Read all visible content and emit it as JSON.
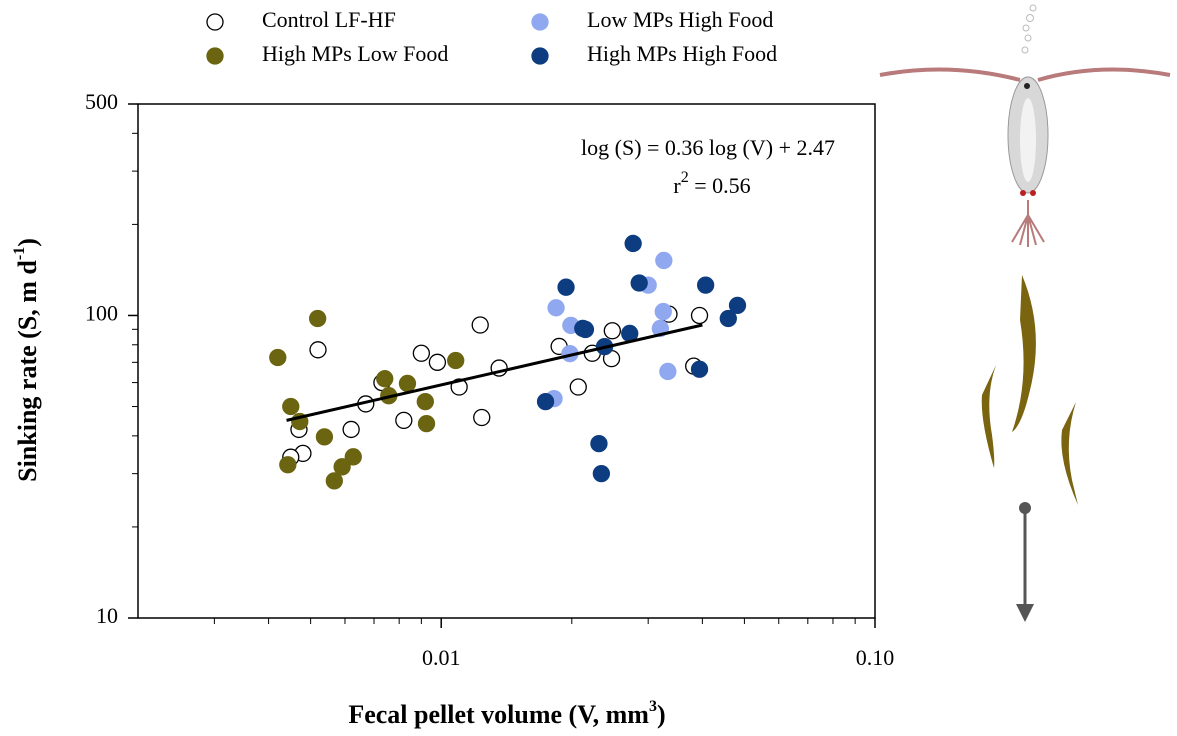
{
  "chart_data": {
    "type": "scatter",
    "xlabel": [
      "Fecal pellet volume (V, mm",
      "3",
      ")"
    ],
    "ylabel": [
      "Sinking rate (S, m d",
      "-1",
      ")"
    ],
    "xscale": "log",
    "yscale": "log",
    "xlim": [
      0.002,
      0.1
    ],
    "ylim": [
      10,
      500
    ],
    "xticks": [
      0.01,
      {
        "value": 0.1,
        "label": "0.10"
      }
    ],
    "yticks": [
      10,
      100,
      500
    ],
    "xminorticks": [
      0.003,
      0.004,
      0.005,
      0.006,
      0.007,
      0.008,
      0.009,
      0.02,
      0.03,
      0.04,
      0.05,
      0.06,
      0.07,
      0.08,
      0.09
    ],
    "yminorticks": [
      20,
      30,
      40,
      50,
      60,
      70,
      80,
      90,
      200,
      300,
      400
    ],
    "equation": "log (S) = 0.36 log (V) + 2.47",
    "r2": [
      "r",
      "2",
      " = 0.56"
    ],
    "fit": {
      "color": "#000000",
      "x": [
        0.0044,
        0.04
      ],
      "y": [
        45,
        93
      ]
    },
    "series": [
      {
        "name": "Control LF-HF",
        "color": "#ffffff",
        "edgecolor": "#000000",
        "x": [
          0.0047,
          0.0048,
          0.0045,
          0.0052,
          0.0062,
          0.0067,
          0.0073,
          0.0082,
          0.009,
          0.0098,
          0.011,
          0.0123,
          0.0124,
          0.0136,
          0.0187,
          0.0207,
          0.0223,
          0.0248,
          0.0247,
          0.0335,
          0.0382,
          0.0394
        ],
        "y": [
          42,
          35,
          34,
          77,
          42,
          51,
          60,
          45,
          75,
          70,
          58,
          93,
          46,
          67,
          79,
          58,
          75,
          89,
          72,
          101,
          68,
          100
        ]
      },
      {
        "name": "High MPs Low Food",
        "color": "#6b6410",
        "edgecolor": "#6b6410",
        "x": [
          0.0042,
          0.0045,
          0.00443,
          0.00472,
          0.00519,
          0.00538,
          0.00567,
          0.00591,
          0.00627,
          0.00741,
          0.00757,
          0.00836,
          0.00919,
          0.00925,
          0.0108
        ],
        "y": [
          72.6,
          50,
          32.1,
          44.6,
          97.7,
          39.7,
          28.4,
          31.6,
          34.1,
          61.8,
          54.3,
          59.6,
          51.9,
          43.9,
          71
        ]
      },
      {
        "name": "Low MPs High Food",
        "color": "#8fa8f0",
        "edgecolor": "#8fa8f0",
        "x": [
          0.0184,
          0.0199,
          0.0198,
          0.0182,
          0.0326,
          0.03,
          0.032,
          0.0325,
          0.0333
        ],
        "y": [
          106,
          92.7,
          74.8,
          53.1,
          152,
          126,
          90.6,
          103,
          65.3
        ]
      },
      {
        "name": "High MPs High Food",
        "color": "#0d3d80",
        "edgecolor": "#0d3d80",
        "x": [
          0.0277,
          0.0194,
          0.0286,
          0.0212,
          0.0215,
          0.0238,
          0.0272,
          0.0174,
          0.0231,
          0.0234,
          0.0407,
          0.0482,
          0.0459,
          0.0394
        ],
        "y": [
          173,
          124,
          128,
          90.6,
          89.9,
          78.9,
          87.2,
          51.9,
          37.7,
          30,
          126,
          108,
          97.7,
          66.4
        ]
      }
    ]
  }
}
